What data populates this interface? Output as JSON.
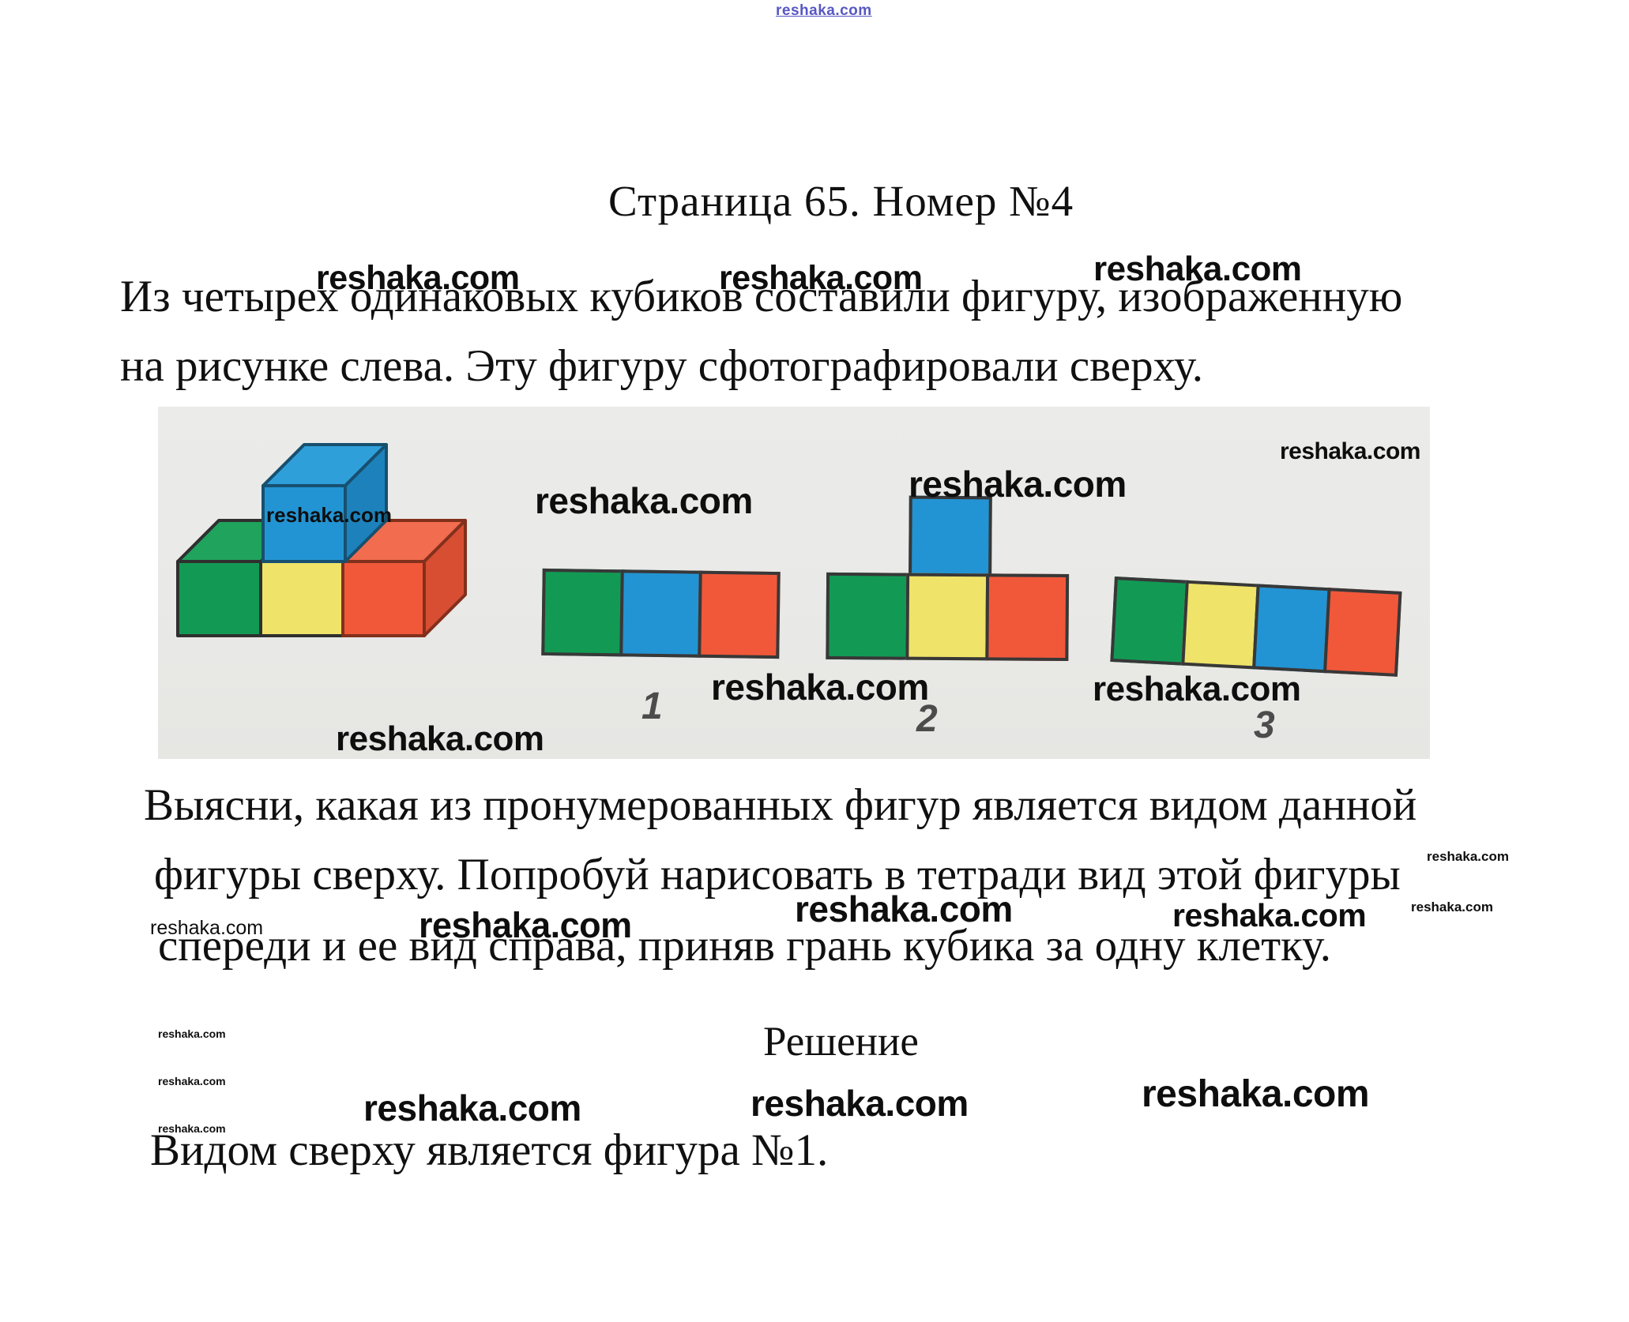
{
  "watermark": {
    "text": "reshaka.com"
  },
  "header": {
    "top_watermark_text": "reshaka.com",
    "title": "Страница 65. Номер №4"
  },
  "problem": {
    "paragraph1_lines": [
      "Из четырех одинаковых кубиков составили фигуру, изображенную",
      "на рисунке слева. Эту фигуру сфотографировали сверху."
    ],
    "paragraph2_lines": [
      "Выясни, какая из пронумерованных фигур является видом данной",
      "фигуры сверху. Попробуй нарисовать в тетради вид этой фигуры",
      "спереди и ее вид справа, приняв грань кубика за одну клетку."
    ]
  },
  "solution": {
    "heading": "Решение",
    "answer": "Видом сверху является фигура №1."
  },
  "photo": {
    "figure_labels": [
      "1",
      "2",
      "3"
    ],
    "cube_stack": {
      "top_cube": "blue",
      "bottom_row": [
        "green",
        "yellow",
        "red"
      ]
    },
    "figure1_colors": [
      "green",
      "blue",
      "red"
    ],
    "figure2_top_colors": [
      "blue"
    ],
    "figure2_bottom_colors": [
      "green",
      "yellow",
      "red"
    ],
    "figure3_colors": [
      "green",
      "yellow",
      "blue",
      "red"
    ]
  },
  "palette": {
    "page-bg": "#ffffff",
    "text": "#101010",
    "watermark-black": "#0e0e0e",
    "watermark-blue": "#3a3ab8",
    "photo-bg": "#e9e9e7",
    "label-gray": "#4c4c4c",
    "edge": "#383838",
    "green": "#129a55",
    "green-top": "#1fa35d",
    "yellow": "#efe369",
    "red": "#f1583a",
    "red-top": "#f26c4f",
    "red-side": "#d84e32",
    "blue": "#2394d3",
    "blue-top": "#2f9fda",
    "blue-side": "#1d82bc"
  }
}
